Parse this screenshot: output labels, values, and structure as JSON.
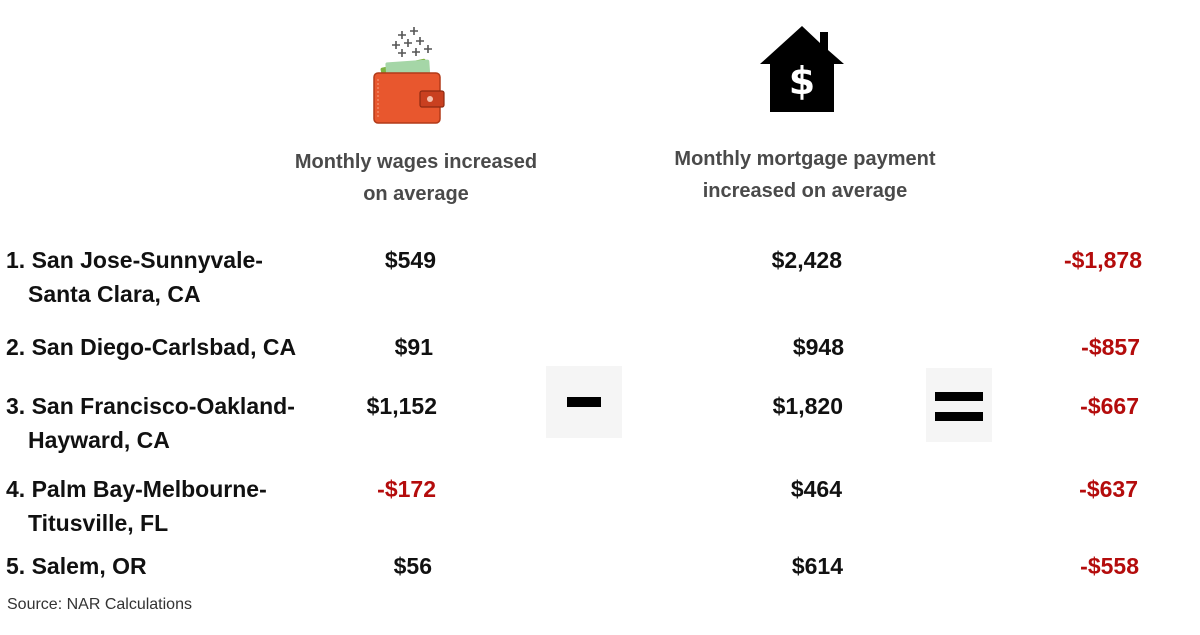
{
  "headers": {
    "wages": [
      "Monthly wages increased",
      "on average"
    ],
    "mortgage": [
      "Monthly mortgage payment",
      "increased on average"
    ]
  },
  "icons": {
    "wages": "wallet-icon",
    "mortgage": "house-dollar-icon"
  },
  "operators": {
    "minus": "-",
    "equals": "="
  },
  "colors": {
    "negative": "#b40c0c",
    "text": "#111111",
    "header": "#4a4a4a"
  },
  "rows": [
    {
      "city_l1": "1. San Jose-Sunnyvale-",
      "city_l2": "Santa Clara, CA",
      "wages": "$549",
      "mortgage": "$2,428",
      "diff": "-$1,878"
    },
    {
      "city_l1": "2. San Diego-Carlsbad, CA",
      "city_l2": "",
      "wages": "$91",
      "mortgage": "$948",
      "diff": "-$857"
    },
    {
      "city_l1": "3. San Francisco-Oakland-",
      "city_l2": "Hayward, CA",
      "wages": "$1,152",
      "mortgage": "$1,820",
      "diff": "-$667"
    },
    {
      "city_l1": "4. Palm Bay-Melbourne-",
      "city_l2": "Titusville, FL",
      "wages": "-$172",
      "mortgage": "$464",
      "diff": "-$637"
    },
    {
      "city_l1": "5. Salem, OR",
      "city_l2": "",
      "wages": "$56",
      "mortgage": "$614",
      "diff": "-$558"
    }
  ],
  "source": "Source: NAR Calculations"
}
